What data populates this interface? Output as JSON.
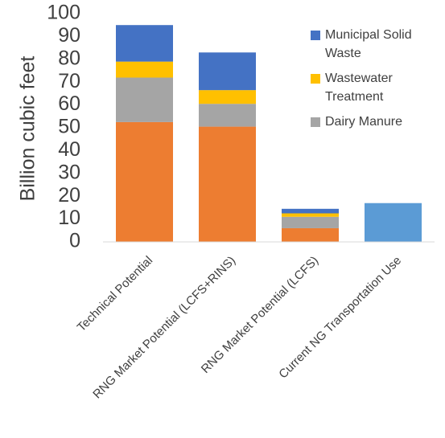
{
  "chart_data": {
    "type": "bar",
    "stacked": true,
    "title": "",
    "xlabel": "",
    "ylabel": "Billion cubic feet",
    "ylim": [
      0,
      100
    ],
    "yticks": [
      0,
      10,
      20,
      30,
      40,
      50,
      60,
      70,
      80,
      90,
      100
    ],
    "grid": false,
    "legend_position": "top-right",
    "categories": [
      "Technical Potential",
      "RNG Market Potential (LCFS+RINS)",
      "RNG Market Potential (LCFS)",
      "Current NG Transportation Use"
    ],
    "series": [
      {
        "key": "landfill",
        "color": "#ED7D31",
        "values": [
          52.5,
          50.5,
          6,
          0
        ]
      },
      {
        "key": "dairy",
        "name": "Dairy Manure",
        "color": "#A5A5A5",
        "values": [
          19.5,
          10,
          5,
          0
        ]
      },
      {
        "key": "wastewater",
        "name": "Wastewater Treatment",
        "color": "#FFC000",
        "values": [
          7,
          6,
          1.5,
          0
        ]
      },
      {
        "key": "msw",
        "name": "Municipal Solid Waste",
        "color": "#4472C4",
        "values": [
          16,
          16.5,
          2,
          0
        ]
      },
      {
        "key": "current",
        "color": "#5B9BD5",
        "values": [
          0,
          0,
          0,
          17
        ]
      }
    ],
    "legend": [
      {
        "lines": [
          "Municipal Solid",
          "Waste"
        ],
        "color": "#4472C4"
      },
      {
        "lines": [
          "Wastewater",
          "Treatment"
        ],
        "color": "#FFC000"
      },
      {
        "lines": [
          "Dairy Manure"
        ],
        "color": "#A5A5A5"
      }
    ],
    "axis_color": "#D9D9D9"
  }
}
